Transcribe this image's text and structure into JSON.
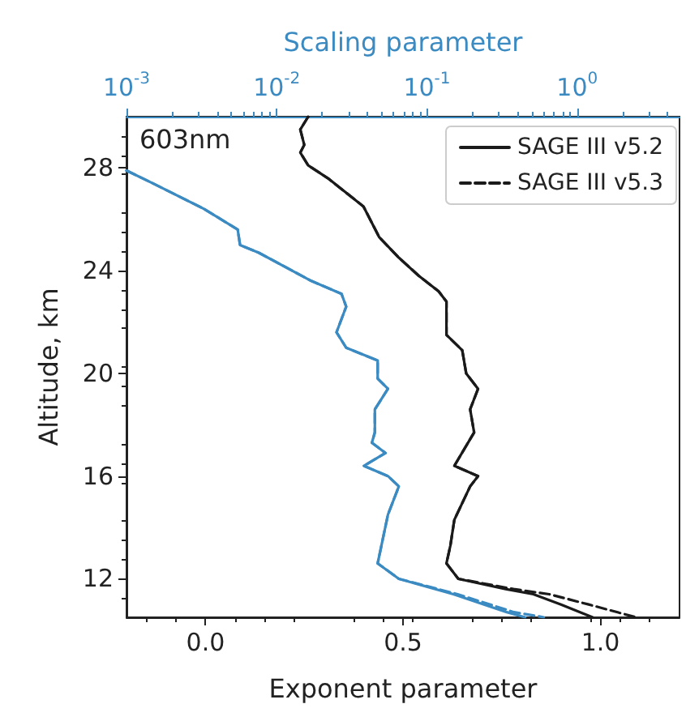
{
  "chart_data": {
    "type": "line",
    "xlabel": "Exponent parameter",
    "ylabel": "Altitude, km",
    "x2label": "Scaling parameter",
    "annotations": [
      "603nm"
    ],
    "xlim": [
      -0.2,
      1.2
    ],
    "xticks": [
      {
        "value": 0,
        "label": "0.0"
      },
      {
        "value": 0.5,
        "label": "0.5"
      },
      {
        "value": 1.0,
        "label": "1.0"
      }
    ],
    "x2lim": [
      0.001,
      4.8
    ],
    "x2ticks": [
      {
        "value": 0.001,
        "label": "10$^{-3}$"
      },
      {
        "value": 0.01,
        "label": "10$^{-2}$"
      },
      {
        "value": 0.1,
        "label": "10$^{-1}$"
      },
      {
        "value": 1,
        "label": "10$^{0}$"
      }
    ],
    "log": "x2",
    "ylim": [
      10.5,
      30
    ],
    "yticks": [
      12,
      16,
      20,
      24,
      28
    ],
    "legend": "top right",
    "grid": false,
    "marker": "none",
    "series": [
      {
        "name": "SAGE III v5.2",
        "color": "#1a1a1a",
        "line_style": "solid",
        "x": [
          0.26,
          0.24,
          0.25,
          0.24,
          0.26,
          0.31,
          0.4,
          0.44,
          0.49,
          0.54,
          0.59,
          0.61,
          0.61,
          0.65,
          0.66,
          0.69,
          0.67,
          0.68,
          0.63,
          0.69,
          0.67,
          0.63,
          0.62,
          0.61,
          0.64,
          0.76,
          0.83,
          0.9,
          0.98
        ],
        "values": [
          30.0,
          29.5,
          28.9,
          28.6,
          28.1,
          27.6,
          26.5,
          25.3,
          24.5,
          23.8,
          23.2,
          22.8,
          21.5,
          20.9,
          20.0,
          19.4,
          18.6,
          17.7,
          16.4,
          16.0,
          15.6,
          14.3,
          13.3,
          12.6,
          12.0,
          11.6,
          11.4,
          11.0,
          10.5
        ]
      },
      {
        "name": "SAGE III v5.3",
        "color": "#1a1a1a",
        "line_style": "dashed",
        "x": [
          0.26,
          0.24,
          0.25,
          0.24,
          0.26,
          0.31,
          0.4,
          0.44,
          0.49,
          0.54,
          0.59,
          0.61,
          0.61,
          0.65,
          0.66,
          0.69,
          0.67,
          0.68,
          0.63,
          0.69,
          0.67,
          0.63,
          0.62,
          0.61,
          0.64,
          0.78,
          0.87,
          0.97,
          1.09
        ],
        "values": [
          30.0,
          29.5,
          28.9,
          28.6,
          28.1,
          27.6,
          26.5,
          25.3,
          24.5,
          23.8,
          23.2,
          22.8,
          21.5,
          20.9,
          20.0,
          19.4,
          18.6,
          17.7,
          16.4,
          16.0,
          15.6,
          14.3,
          13.3,
          12.6,
          12.0,
          11.6,
          11.4,
          11.0,
          10.5
        ]
      },
      {
        "color": "#3b8bc2",
        "line_style": "solid",
        "axis": "x2",
        "x": [
          0.001,
          0.0015,
          0.0033,
          0.0055,
          0.0057,
          0.0076,
          0.017,
          0.027,
          0.029,
          0.025,
          0.029,
          0.047,
          0.047,
          0.055,
          0.045,
          0.045,
          0.043,
          0.053,
          0.038,
          0.055,
          0.065,
          0.055,
          0.047,
          0.065,
          0.15,
          0.34,
          0.45
        ],
        "values": [
          27.9,
          27.4,
          26.4,
          25.6,
          25.0,
          24.7,
          23.6,
          23.1,
          22.6,
          21.6,
          21.0,
          20.5,
          19.8,
          19.4,
          18.6,
          17.7,
          17.3,
          16.9,
          16.4,
          16.0,
          15.6,
          14.5,
          12.6,
          12.0,
          11.4,
          10.7,
          10.5
        ]
      },
      {
        "color": "#3b8bc2",
        "line_style": "dashed",
        "axis": "x2",
        "x": [
          0.001,
          0.0015,
          0.0033,
          0.0055,
          0.0057,
          0.0076,
          0.017,
          0.027,
          0.029,
          0.025,
          0.029,
          0.047,
          0.047,
          0.055,
          0.045,
          0.045,
          0.043,
          0.053,
          0.038,
          0.055,
          0.065,
          0.055,
          0.047,
          0.065,
          0.16,
          0.38,
          0.6
        ],
        "values": [
          27.9,
          27.4,
          26.4,
          25.6,
          25.0,
          24.7,
          23.6,
          23.1,
          22.6,
          21.6,
          21.0,
          20.5,
          19.8,
          19.4,
          18.6,
          17.7,
          17.3,
          16.9,
          16.4,
          16.0,
          15.6,
          14.5,
          12.6,
          12.0,
          11.4,
          10.7,
          10.5
        ]
      }
    ]
  }
}
